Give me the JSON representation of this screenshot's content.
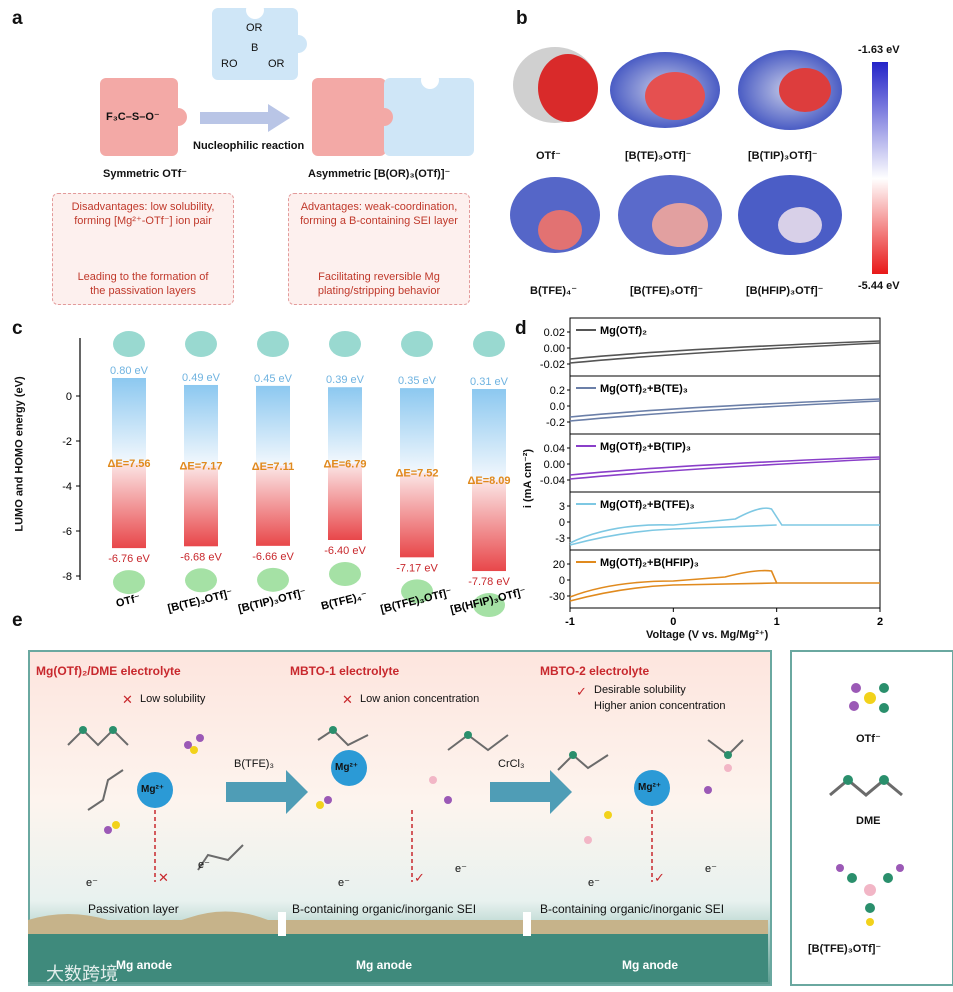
{
  "panel_labels": {
    "a": "a",
    "b": "b",
    "c": "c",
    "d": "d",
    "e": "e"
  },
  "panel_a": {
    "reagent_or_top": "OR",
    "reagent_b": "B",
    "reagent_ro": "RO",
    "reagent_or_right": "OR",
    "otf_formula": "F₃C–S–O⁻",
    "arrow_label": "Nucleophilic reaction",
    "left_caption": "Symmetric OTf⁻",
    "right_caption": "Asymmetric [B(OR)₃(OTf)]⁻",
    "disadvantages": [
      "Disadvantages: low solubility,",
      "forming [Mg²⁺-OTf⁻] ion pair"
    ],
    "leading": [
      "Leading to the formation of",
      "the passivation layers"
    ],
    "advantages": [
      "Advantages: weak-coordination,",
      "forming a B-containing SEI layer"
    ],
    "facilitating": [
      "Facilitating reversible Mg",
      "plating/stripping behavior"
    ]
  },
  "panel_b": {
    "labels": [
      "OTf⁻",
      "[B(TE)₃OTf]⁻",
      "[B(TIP)₃OTf]⁻",
      "B(TFE)₄⁻",
      "[B(TFE)₃OTf]⁻",
      "[B(HFIP)₃OTf]⁻"
    ],
    "scale_max": "-1.63 eV",
    "scale_min": "-5.44 eV"
  },
  "panel_c": {
    "ylabel": "LUMO and HOMO energy (eV)",
    "yticks": [
      "0",
      "-2",
      "-4",
      "-6",
      "-8"
    ],
    "species": [
      "OTf⁻",
      "[B(TE)₃OTf]⁻",
      "[B(TIP)₃OTf]⁻",
      "B(TFE)₄⁻",
      "[B(TFE)₃OTf]⁻",
      "[B(HFIP)₃OTf]⁻"
    ],
    "lumo_labels": [
      "0.80 eV",
      "0.49 eV",
      "0.45 eV",
      "0.39 eV",
      "0.35 eV",
      "0.31 eV"
    ],
    "gap_labels": [
      "ΔE=7.56",
      "ΔE=7.17",
      "ΔE=7.11",
      "ΔE=6.79",
      "ΔE=7.52",
      "ΔE=8.09"
    ],
    "homo_labels": [
      "-6.76 eV",
      "-6.68 eV",
      "-6.66 eV",
      "-6.40 eV",
      "-7.17 eV",
      "-7.78 eV"
    ]
  },
  "chart_data": {
    "type": "bar",
    "categories": [
      "OTf⁻",
      "[B(TE)₃OTf]⁻",
      "[B(TIP)₃OTf]⁻",
      "B(TFE)₄⁻",
      "[B(TFE)₃OTf]⁻",
      "[B(HFIP)₃OTf]⁻"
    ],
    "series": [
      {
        "name": "LUMO",
        "values": [
          0.8,
          0.49,
          0.45,
          0.39,
          0.35,
          0.31
        ]
      },
      {
        "name": "HOMO",
        "values": [
          -6.76,
          -6.68,
          -6.66,
          -6.4,
          -7.17,
          -7.78
        ]
      },
      {
        "name": "ΔE",
        "values": [
          7.56,
          7.17,
          7.11,
          6.79,
          7.52,
          8.09
        ]
      }
    ],
    "ylabel": "LUMO and HOMO energy (eV)",
    "ylim": [
      -8,
      1.2
    ]
  },
  "panel_d": {
    "xlabel": "Voltage (V vs. Mg/Mg²⁺)",
    "ylabel": "i (mA cm⁻²)",
    "xticks": [
      "-1",
      "0",
      "1",
      "2"
    ],
    "subplots": [
      {
        "name": "Mg(OTf)₂",
        "color": "#555555",
        "yticks": [
          "0.02",
          "0.00",
          "-0.02"
        ]
      },
      {
        "name": "Mg(OTf)₂+B(TE)₃",
        "color": "#6b7fa8",
        "yticks": [
          "0.2",
          "0.0",
          "-0.2"
        ]
      },
      {
        "name": "Mg(OTf)₂+B(TIP)₃",
        "color": "#8a3fc9",
        "yticks": [
          "0.04",
          "0.00",
          "-0.04"
        ]
      },
      {
        "name": "Mg(OTf)₂+B(TFE)₃",
        "color": "#7ec8e3",
        "yticks": [
          "3",
          "0",
          "-3"
        ]
      },
      {
        "name": "Mg(OTf)₂+B(HFIP)₃",
        "color": "#e08a1e",
        "yticks": [
          "20",
          "0",
          "-30"
        ]
      }
    ]
  },
  "panel_e": {
    "col1_title": "Mg(OTf)₂/DME electrolyte",
    "col1_note": "Low solubility",
    "col1_bottom": "Passivation layer",
    "col2_title": "MBTO-1 electrolyte",
    "col2_note": "Low anion concentration",
    "col2_bottom": "B-containing organic/inorganic SEI",
    "col3_title": "MBTO-2 electrolyte",
    "col3_note1": "Desirable solubility",
    "col3_note2": "Higher anion concentration",
    "col3_bottom": "B-containing organic/inorganic SEI",
    "arrow1": "B(TFE)₃",
    "arrow2": "CrCl₃",
    "mg_ion": "Mg²⁺",
    "electron": "e⁻",
    "anode": "Mg anode",
    "legend": [
      "OTf⁻",
      "DME",
      "[B(TFE)₃OTf]⁻"
    ],
    "watermark": "大数跨境"
  },
  "colors": {
    "lumo_blue": "#8cc8f0",
    "homo_red": "#e8474a",
    "gap_orange": "#e08a1e",
    "teal": "#4e9a8e",
    "title_red": "#c8282d"
  }
}
